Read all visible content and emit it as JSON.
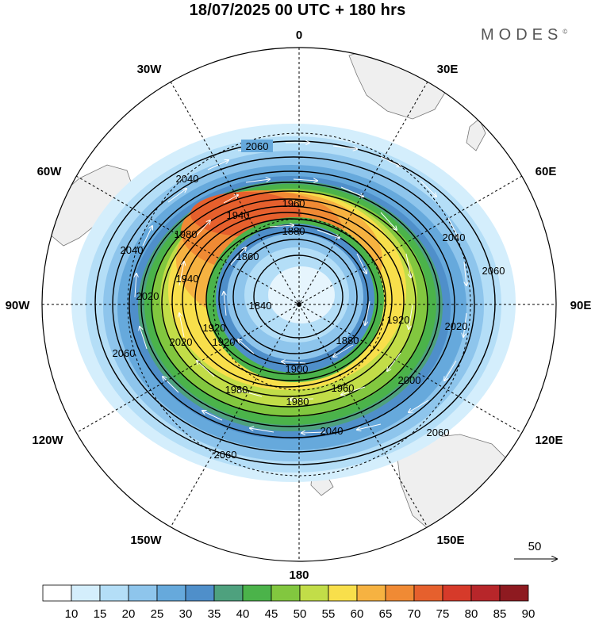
{
  "title": "18/07/2025  00 UTC  + 180 hrs",
  "brand": "MODES",
  "brand_mark": "©",
  "map": {
    "projection": "polar-stereographic-south",
    "longitude_labels": {
      "top": "0",
      "top_right": "30E",
      "right_upper": "60E",
      "right": "90E",
      "right_lower": "120E",
      "bottom_right": "150E",
      "bottom": "180",
      "bottom_left": "150W",
      "left_lower": "120W",
      "left": "90W",
      "left_upper": "60W",
      "top_left": "30W"
    },
    "contour_labels": [
      "2060",
      "2040",
      "1960",
      "1940",
      "1980",
      "1880",
      "2040",
      "1860",
      "2060",
      "2040",
      "1940",
      "2020",
      "1840",
      "1920",
      "1920",
      "2020",
      "2060",
      "2020",
      "1920",
      "1880",
      "1900",
      "2000",
      "1980",
      "1960",
      "1980",
      "2040",
      "2060",
      "2060"
    ],
    "reference_vector": "50"
  },
  "colorbar": {
    "ticks": [
      "10",
      "15",
      "20",
      "25",
      "30",
      "35",
      "40",
      "45",
      "50",
      "55",
      "60",
      "65",
      "70",
      "75",
      "80",
      "85",
      "90"
    ],
    "colors": [
      "#ffffff",
      "#d4eefc",
      "#b4def7",
      "#8ec5ec",
      "#66a9dc",
      "#4f8fca",
      "#4ea17e",
      "#4bb34a",
      "#82c73f",
      "#c2dd48",
      "#f8df4b",
      "#f6b241",
      "#f08a34",
      "#e6602d",
      "#d63a2a",
      "#b7262a",
      "#8e1a20"
    ]
  }
}
